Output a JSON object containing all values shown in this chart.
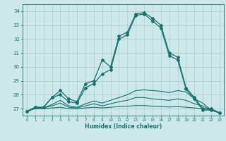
{
  "title": "",
  "xlabel": "Humidex (Indice chaleur)",
  "ylabel": "",
  "background_color": "#cce8e8",
  "grid_color": "#aacccc",
  "line_color": "#1a7070",
  "xlim": [
    -0.5,
    23.5
  ],
  "ylim": [
    26.5,
    34.5
  ],
  "yticks": [
    27,
    28,
    29,
    30,
    31,
    32,
    33,
    34
  ],
  "xticks": [
    0,
    1,
    2,
    3,
    4,
    5,
    6,
    7,
    8,
    9,
    10,
    11,
    12,
    13,
    14,
    15,
    16,
    17,
    18,
    19,
    20,
    21,
    22,
    23
  ],
  "series": [
    {
      "x": [
        0,
        1,
        2,
        3,
        4,
        5,
        6,
        7,
        8,
        9,
        10,
        11,
        12,
        13,
        14,
        15,
        16,
        17,
        18,
        19,
        20,
        21,
        22,
        23
      ],
      "y": [
        26.8,
        27.1,
        27.1,
        27.8,
        28.3,
        27.7,
        27.5,
        28.8,
        29.0,
        30.5,
        30.0,
        32.2,
        32.5,
        33.8,
        33.9,
        33.5,
        33.0,
        31.0,
        30.7,
        28.5,
        27.8,
        27.0,
        27.0,
        26.7
      ],
      "marker": "D",
      "markersize": 2.0,
      "linewidth": 0.9,
      "has_marker": true
    },
    {
      "x": [
        0,
        1,
        2,
        3,
        4,
        5,
        6,
        7,
        8,
        9,
        10,
        11,
        12,
        13,
        14,
        15,
        16,
        17,
        18,
        19,
        20,
        21,
        22,
        23
      ],
      "y": [
        26.8,
        27.1,
        27.1,
        27.8,
        28.0,
        27.5,
        27.4,
        28.5,
        28.8,
        29.5,
        29.8,
        32.0,
        32.3,
        33.7,
        33.8,
        33.3,
        32.8,
        30.8,
        30.5,
        28.4,
        27.7,
        26.9,
        26.9,
        26.7
      ],
      "marker": "D",
      "markersize": 2.0,
      "linewidth": 0.9,
      "has_marker": true
    },
    {
      "x": [
        0,
        1,
        2,
        3,
        4,
        5,
        6,
        7,
        8,
        9,
        10,
        11,
        12,
        13,
        14,
        15,
        16,
        17,
        18,
        19,
        20,
        21,
        22,
        23
      ],
      "y": [
        26.8,
        27.05,
        27.05,
        27.3,
        27.6,
        27.2,
        27.1,
        27.35,
        27.55,
        27.4,
        27.6,
        27.8,
        28.0,
        28.3,
        28.35,
        28.3,
        28.25,
        28.15,
        28.3,
        28.2,
        27.7,
        27.4,
        26.9,
        26.7
      ],
      "marker": null,
      "markersize": 0,
      "linewidth": 0.8,
      "has_marker": false
    },
    {
      "x": [
        0,
        1,
        2,
        3,
        4,
        5,
        6,
        7,
        8,
        9,
        10,
        11,
        12,
        13,
        14,
        15,
        16,
        17,
        18,
        19,
        20,
        21,
        22,
        23
      ],
      "y": [
        26.8,
        27.05,
        27.05,
        27.2,
        27.4,
        27.1,
        27.05,
        27.2,
        27.35,
        27.2,
        27.35,
        27.5,
        27.6,
        27.8,
        27.8,
        27.7,
        27.65,
        27.6,
        27.7,
        27.6,
        27.35,
        27.2,
        26.9,
        26.7
      ],
      "marker": null,
      "markersize": 0,
      "linewidth": 0.8,
      "has_marker": false
    },
    {
      "x": [
        0,
        1,
        2,
        3,
        4,
        5,
        6,
        7,
        8,
        9,
        10,
        11,
        12,
        13,
        14,
        15,
        16,
        17,
        18,
        19,
        20,
        21,
        22,
        23
      ],
      "y": [
        26.8,
        27.0,
        27.0,
        27.05,
        27.1,
        27.0,
        27.0,
        27.05,
        27.1,
        27.05,
        27.1,
        27.15,
        27.18,
        27.22,
        27.22,
        27.18,
        27.15,
        27.12,
        27.15,
        27.1,
        27.05,
        27.0,
        26.9,
        26.7
      ],
      "marker": null,
      "markersize": 0,
      "linewidth": 0.8,
      "has_marker": false
    }
  ]
}
